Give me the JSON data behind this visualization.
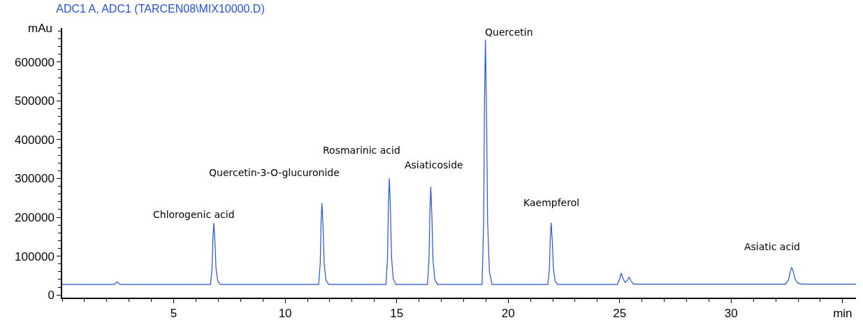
{
  "chart_data": {
    "type": "line",
    "title": "ADC1 A, ADC1 (TARCEN08\\MIX10000.D)",
    "ylabel": "mAu",
    "xlim": [
      0,
      35.6
    ],
    "ylim": [
      -7000,
      688000
    ],
    "xticks": [
      5,
      10,
      15,
      20,
      25,
      30,
      {
        "value": 35,
        "label": "min"
      }
    ],
    "yticks": [
      0,
      100000,
      200000,
      300000,
      400000,
      500000,
      600000
    ],
    "marker": "none",
    "line_style": "solid",
    "series": [
      {
        "color": "#1f4fff",
        "x": [
          0,
          2.35,
          2.45,
          2.6,
          6.65,
          6.72,
          6.76,
          6.8,
          6.85,
          6.9,
          6.98,
          7.1,
          11.5,
          11.57,
          11.61,
          11.65,
          11.7,
          11.75,
          11.83,
          11.95,
          14.52,
          14.59,
          14.63,
          14.67,
          14.72,
          14.77,
          14.85,
          14.97,
          16.38,
          16.45,
          16.49,
          16.53,
          16.58,
          16.63,
          16.71,
          16.83,
          18.83,
          18.9,
          18.94,
          18.98,
          19.03,
          19.08,
          19.16,
          19.28,
          21.78,
          21.85,
          21.89,
          21.93,
          21.98,
          22.03,
          22.11,
          22.23,
          24.9,
          25.0,
          25.07,
          25.15,
          25.25,
          25.35,
          25.43,
          25.5,
          25.62,
          32.45,
          32.58,
          32.65,
          32.71,
          32.78,
          32.86,
          32.98,
          33.15,
          35.6
        ],
        "values": [
          27000,
          27000,
          34000,
          27000,
          27000,
          67000,
          146000,
          185000,
          138000,
          67000,
          35000,
          27000,
          27000,
          80000,
          185000,
          237000,
          174000,
          80000,
          38000,
          27000,
          27000,
          96000,
          233000,
          301000,
          219000,
          96000,
          41000,
          27000,
          27000,
          90000,
          216000,
          279000,
          203000,
          90000,
          40000,
          27000,
          27000,
          185000,
          500000,
          658000,
          469000,
          185000,
          59000,
          27000,
          27000,
          67000,
          146000,
          186000,
          138000,
          67000,
          35000,
          27000,
          27000,
          42000,
          56000,
          42000,
          32000,
          38000,
          46000,
          37000,
          28000,
          28000,
          40000,
          60000,
          71000,
          62000,
          42000,
          31000,
          28000,
          28000
        ]
      }
    ],
    "annotations": [
      {
        "text": "Chlorogenic acid",
        "x": 6.8,
        "y": 185000
      },
      {
        "text": "Quercetin-3-O-glucuronide",
        "x": 11.65,
        "y": 237000
      },
      {
        "text": "Rosmarinic acid",
        "x": 14.67,
        "y": 301000
      },
      {
        "text": "Asiaticoside",
        "x": 16.53,
        "y": 279000
      },
      {
        "text": "Quercetin",
        "x": 18.98,
        "y": 658000
      },
      {
        "text": "Kaempferol",
        "x": 21.93,
        "y": 186000
      },
      {
        "text": "Asiatic acid",
        "x": 32.71,
        "y": 71000
      }
    ]
  }
}
